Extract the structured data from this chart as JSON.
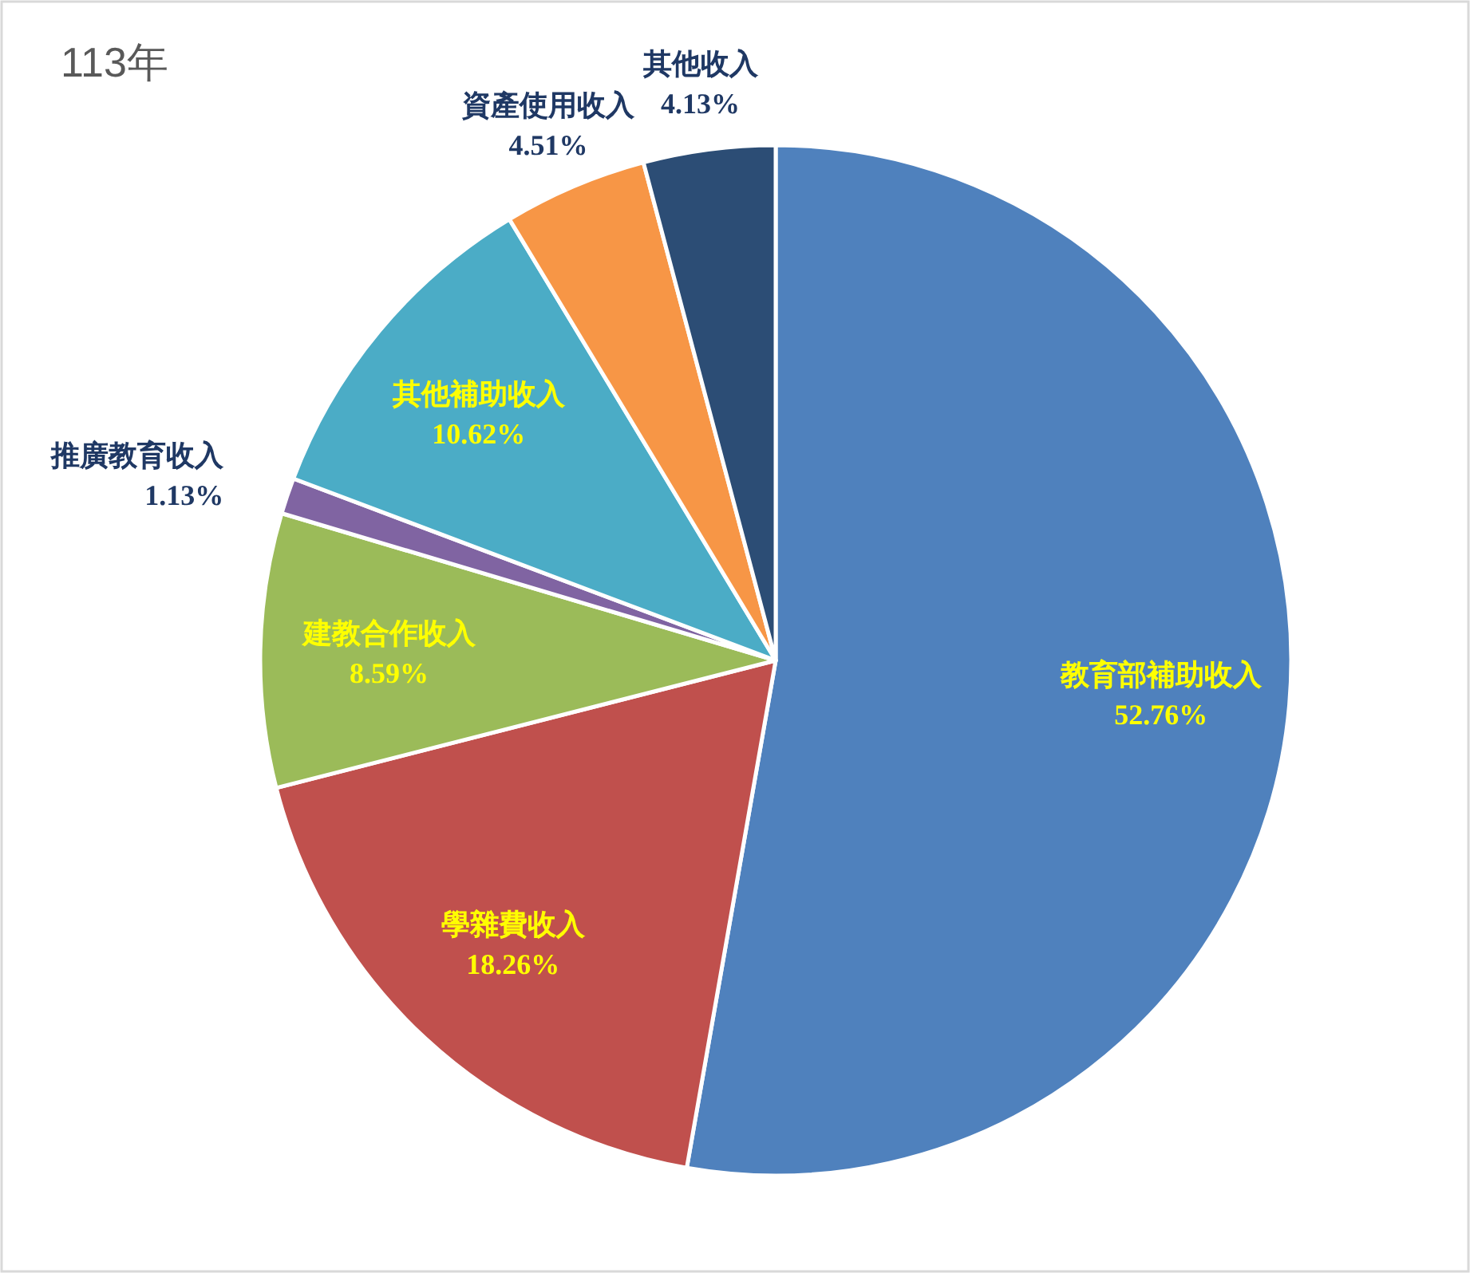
{
  "chart_data": {
    "type": "pie",
    "title": "113年",
    "categories": [
      "教育部補助收入",
      "學雜費收入",
      "建教合作收入",
      "推廣教育收入",
      "其他補助收入",
      "資產使用收入",
      "其他收入"
    ],
    "values": [
      52.76,
      18.26,
      8.59,
      1.13,
      10.62,
      4.51,
      4.13
    ],
    "value_labels": [
      "52.76%",
      "18.26%",
      "8.59%",
      "1.13%",
      "10.62%",
      "4.51%",
      "4.13%"
    ],
    "colors": [
      "#4f81bd",
      "#c0504d",
      "#9bbb59",
      "#8064a2",
      "#4bacc6",
      "#f79646",
      "#2c4d75"
    ]
  }
}
